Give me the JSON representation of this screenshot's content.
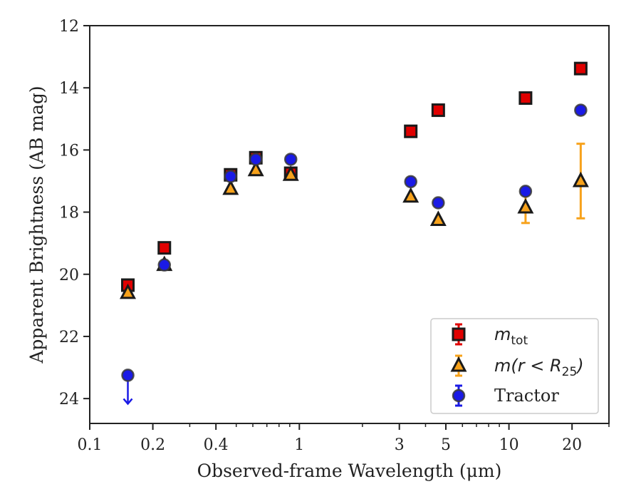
{
  "chart_data": {
    "type": "scatter",
    "xlabel": "Observed-frame Wavelength (μm)",
    "ylabel": "Apparent Brightness (AB mag)",
    "x_scale": "log",
    "xlim": [
      0.1,
      30
    ],
    "ylim": [
      24.8,
      12
    ],
    "y_inverted": true,
    "x_ticks": [
      {
        "value": 0.1,
        "label": "0.1"
      },
      {
        "value": 0.2,
        "label": "0.2"
      },
      {
        "value": 0.4,
        "label": "0.4"
      },
      {
        "value": 1,
        "label": "1"
      },
      {
        "value": 3,
        "label": "3"
      },
      {
        "value": 5,
        "label": "5"
      },
      {
        "value": 10,
        "label": "10"
      },
      {
        "value": 20,
        "label": "20"
      }
    ],
    "y_ticks": [
      12,
      14,
      16,
      18,
      20,
      22,
      24
    ],
    "legend_position": "lower right",
    "series": [
      {
        "name": "m_tot",
        "legend_main": "m",
        "legend_sub": "tot",
        "marker": "square",
        "color": "#e00000",
        "edge_color": "#1a1a1a",
        "points": [
          {
            "x": 0.152,
            "y": 20.35
          },
          {
            "x": 0.227,
            "y": 19.15
          },
          {
            "x": 0.47,
            "y": 16.8
          },
          {
            "x": 0.62,
            "y": 16.25
          },
          {
            "x": 0.91,
            "y": 16.75
          },
          {
            "x": 3.4,
            "y": 15.4
          },
          {
            "x": 4.6,
            "y": 14.72
          },
          {
            "x": 12.0,
            "y": 14.33
          },
          {
            "x": 22.0,
            "y": 13.38
          }
        ]
      },
      {
        "name": "m(r < R25)",
        "legend_main": "m(r < R",
        "legend_sub": "25",
        "legend_tail": ")",
        "marker": "triangle",
        "color": "#f7a21b",
        "edge_color": "#1a1a1a",
        "points": [
          {
            "x": 0.152,
            "y": 20.6
          },
          {
            "x": 0.227,
            "y": 19.7
          },
          {
            "x": 0.47,
            "y": 17.25
          },
          {
            "x": 0.62,
            "y": 16.65
          },
          {
            "x": 0.91,
            "y": 16.8
          },
          {
            "x": 3.4,
            "y": 17.5
          },
          {
            "x": 4.6,
            "y": 18.25
          },
          {
            "x": 12.0,
            "y": 17.85,
            "err_low": 0.5,
            "err_high": 0.5
          },
          {
            "x": 22.0,
            "y": 17.0,
            "err_low": 1.2,
            "err_high": 1.2
          }
        ]
      },
      {
        "name": "Tractor",
        "legend_main": "Tractor",
        "marker": "circle",
        "color": "#1a1ae6",
        "edge_color": "#3a3a3a",
        "points": [
          {
            "x": 0.152,
            "y": 23.25,
            "upper_limit": true
          },
          {
            "x": 0.227,
            "y": 19.7
          },
          {
            "x": 0.47,
            "y": 16.85
          },
          {
            "x": 0.62,
            "y": 16.3
          },
          {
            "x": 0.91,
            "y": 16.3
          },
          {
            "x": 3.4,
            "y": 17.02
          },
          {
            "x": 4.6,
            "y": 17.7
          },
          {
            "x": 12.0,
            "y": 17.33
          },
          {
            "x": 22.0,
            "y": 14.72
          }
        ]
      }
    ]
  }
}
